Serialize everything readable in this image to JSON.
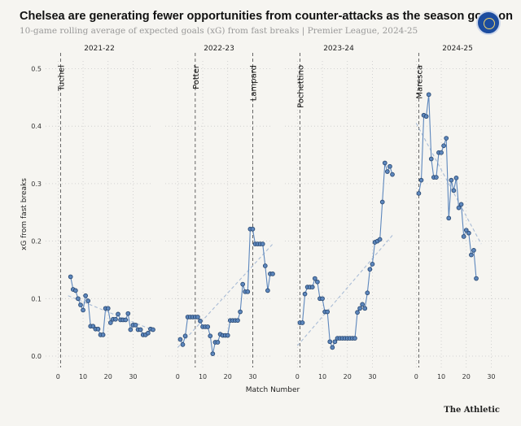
{
  "header": {
    "title": "Chelsea are generating fewer opportunities from counter-attacks as the season goes on",
    "subtitle": "10-game rolling average of expected goals (xG) from fast breaks | Premier League, 2024-25",
    "logo_icon": "chelsea-crest-icon"
  },
  "footer": {
    "credit": "The Athletic"
  },
  "colors": {
    "line": "#5d87bd",
    "marker_fill": "#5d87bd",
    "marker_stroke": "#2b4a73",
    "trend": "#a9bcd6",
    "grid": "#c9c9c9"
  },
  "chart_data": {
    "type": "line",
    "xlabel": "Match Number",
    "ylabel": "xG from fast breaks",
    "ylim": [
      0,
      0.5
    ],
    "yticks": [
      "0.0",
      "0.1",
      "0.2",
      "0.3",
      "0.4",
      "0.5"
    ],
    "xticks": [
      "0",
      "10",
      "20",
      "30"
    ],
    "xlim": [
      -5,
      38
    ],
    "panels": [
      {
        "title": "2021-22",
        "annotations": [
          {
            "x": 1,
            "label": "Tuchel"
          }
        ],
        "trend": [
          [
            4,
            0.105
          ],
          [
            38,
            0.045
          ]
        ],
        "points": [
          [
            5,
            0.138
          ],
          [
            6,
            0.116
          ],
          [
            7,
            0.114
          ],
          [
            8,
            0.1
          ],
          [
            9,
            0.089
          ],
          [
            10,
            0.08
          ],
          [
            11,
            0.105
          ],
          [
            12,
            0.096
          ],
          [
            13,
            0.052
          ],
          [
            14,
            0.052
          ],
          [
            15,
            0.047
          ],
          [
            16,
            0.047
          ],
          [
            17,
            0.037
          ],
          [
            18,
            0.037
          ],
          [
            19,
            0.083
          ],
          [
            20,
            0.083
          ],
          [
            21,
            0.058
          ],
          [
            22,
            0.064
          ],
          [
            23,
            0.064
          ],
          [
            24,
            0.073
          ],
          [
            25,
            0.063
          ],
          [
            26,
            0.063
          ],
          [
            27,
            0.063
          ],
          [
            28,
            0.074
          ],
          [
            29,
            0.046
          ],
          [
            30,
            0.054
          ],
          [
            31,
            0.054
          ],
          [
            32,
            0.046
          ],
          [
            33,
            0.046
          ],
          [
            34,
            0.037
          ],
          [
            35,
            0.037
          ],
          [
            36,
            0.04
          ],
          [
            37,
            0.047
          ],
          [
            38,
            0.046
          ]
        ]
      },
      {
        "title": "2022-23",
        "annotations": [
          {
            "x": 7,
            "label": "Potter"
          },
          {
            "x": 30,
            "label": "Lampard"
          }
        ],
        "trend": [
          [
            0,
            0.015
          ],
          [
            38,
            0.195
          ]
        ],
        "points": [
          [
            1,
            0.029
          ],
          [
            2,
            0.02
          ],
          [
            3,
            0.035
          ],
          [
            4,
            0.068
          ],
          [
            5,
            0.068
          ],
          [
            6,
            0.068
          ],
          [
            7,
            0.068
          ],
          [
            8,
            0.068
          ],
          [
            9,
            0.061
          ],
          [
            10,
            0.051
          ],
          [
            11,
            0.051
          ],
          [
            12,
            0.051
          ],
          [
            13,
            0.035
          ],
          [
            14,
            0.004
          ],
          [
            15,
            0.024
          ],
          [
            16,
            0.024
          ],
          [
            17,
            0.038
          ],
          [
            18,
            0.036
          ],
          [
            19,
            0.036
          ],
          [
            20,
            0.036
          ],
          [
            21,
            0.062
          ],
          [
            22,
            0.062
          ],
          [
            23,
            0.062
          ],
          [
            24,
            0.062
          ],
          [
            25,
            0.077
          ],
          [
            26,
            0.125
          ],
          [
            27,
            0.112
          ],
          [
            28,
            0.112
          ],
          [
            29,
            0.221
          ],
          [
            30,
            0.221
          ],
          [
            31,
            0.195
          ],
          [
            32,
            0.195
          ],
          [
            33,
            0.195
          ],
          [
            34,
            0.195
          ],
          [
            35,
            0.157
          ],
          [
            36,
            0.114
          ],
          [
            37,
            0.143
          ],
          [
            38,
            0.143
          ]
        ]
      },
      {
        "title": "2023-24",
        "annotations": [
          {
            "x": 1,
            "label": "Pochettino"
          }
        ],
        "trend": [
          [
            0,
            0.018
          ],
          [
            38,
            0.21
          ]
        ],
        "points": [
          [
            1,
            0.058
          ],
          [
            2,
            0.058
          ],
          [
            3,
            0.108
          ],
          [
            4,
            0.12
          ],
          [
            5,
            0.12
          ],
          [
            6,
            0.12
          ],
          [
            7,
            0.135
          ],
          [
            8,
            0.129
          ],
          [
            9,
            0.1
          ],
          [
            10,
            0.1
          ],
          [
            11,
            0.077
          ],
          [
            12,
            0.077
          ],
          [
            13,
            0.025
          ],
          [
            14,
            0.015
          ],
          [
            15,
            0.025
          ],
          [
            16,
            0.031
          ],
          [
            17,
            0.031
          ],
          [
            18,
            0.031
          ],
          [
            19,
            0.031
          ],
          [
            20,
            0.031
          ],
          [
            21,
            0.031
          ],
          [
            22,
            0.031
          ],
          [
            23,
            0.031
          ],
          [
            24,
            0.076
          ],
          [
            25,
            0.083
          ],
          [
            26,
            0.09
          ],
          [
            27,
            0.083
          ],
          [
            28,
            0.11
          ],
          [
            29,
            0.151
          ],
          [
            30,
            0.16
          ],
          [
            31,
            0.198
          ],
          [
            32,
            0.2
          ],
          [
            33,
            0.203
          ],
          [
            34,
            0.268
          ],
          [
            35,
            0.336
          ],
          [
            36,
            0.321
          ],
          [
            37,
            0.33
          ],
          [
            38,
            0.316
          ]
        ]
      },
      {
        "title": "2024-25",
        "annotations": [
          {
            "x": 1,
            "label": "Maresca"
          }
        ],
        "trend": [
          [
            0,
            0.405
          ],
          [
            26,
            0.195
          ]
        ],
        "points": [
          [
            1,
            0.283
          ],
          [
            2,
            0.306
          ],
          [
            3,
            0.419
          ],
          [
            4,
            0.417
          ],
          [
            5,
            0.455
          ],
          [
            6,
            0.343
          ],
          [
            7,
            0.311
          ],
          [
            8,
            0.311
          ],
          [
            9,
            0.354
          ],
          [
            10,
            0.354
          ],
          [
            11,
            0.366
          ],
          [
            12,
            0.379
          ],
          [
            13,
            0.24
          ],
          [
            14,
            0.306
          ],
          [
            15,
            0.288
          ],
          [
            16,
            0.31
          ],
          [
            17,
            0.258
          ],
          [
            18,
            0.264
          ],
          [
            19,
            0.208
          ],
          [
            20,
            0.219
          ],
          [
            21,
            0.214
          ],
          [
            22,
            0.176
          ],
          [
            23,
            0.184
          ],
          [
            24,
            0.135
          ]
        ]
      }
    ]
  }
}
